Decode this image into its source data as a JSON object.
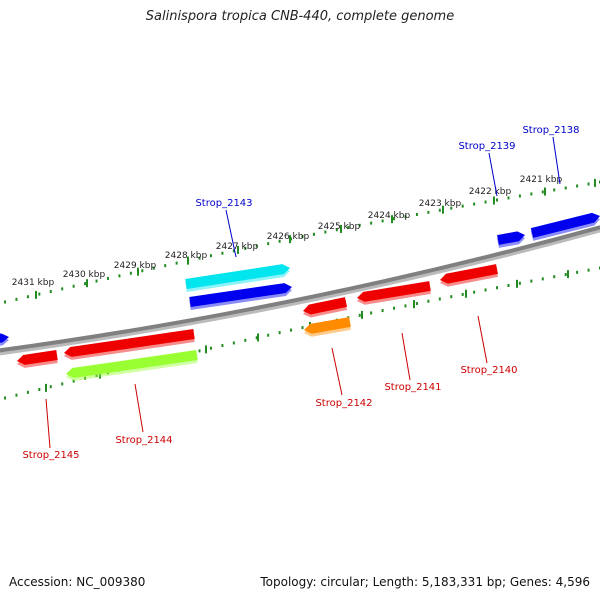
{
  "title": "Salinispora tropica CNB-440, complete genome",
  "footer": {
    "accession": "Accession: NC_009380",
    "summary": "Topology: circular; Length: 5,183,331 bp; Genes: 4,596"
  },
  "ruler": {
    "labels": [
      "2421 kbp",
      "2422 kbp",
      "2423 kbp",
      "2424 kbp",
      "2425 kbp",
      "2426 kbp",
      "2427 kbp",
      "2428 kbp",
      "2429 kbp",
      "2430 kbp",
      "2431 kbp"
    ]
  },
  "genes": [
    {
      "label": "Strop_2138",
      "strand": "forward",
      "color": "#0000ee"
    },
    {
      "label": "Strop_2139",
      "strand": "forward",
      "color": "#0000ee"
    },
    {
      "label": "Strop_2140",
      "strand": "reverse",
      "color": "#ee0000"
    },
    {
      "label": "Strop_2141",
      "strand": "reverse",
      "color": "#ee0000"
    },
    {
      "label": "Strop_2142",
      "strand": "reverse",
      "color": "#ee0000"
    },
    {
      "label": "Strop_2143",
      "strand": "forward",
      "color": "#0000ee"
    },
    {
      "label": "Strop_2144",
      "strand": "reverse",
      "color": "#ee0000"
    },
    {
      "label": "Strop_2145",
      "strand": "reverse",
      "color": "#ee0000"
    }
  ],
  "extra_features": [
    {
      "color": "#00e5ee",
      "strand": "forward"
    },
    {
      "color": "#ff8c00",
      "strand": "reverse"
    },
    {
      "color": "#99ff33",
      "strand": "reverse"
    }
  ],
  "colors": {
    "backbone": "#808080",
    "ticks": "#228b22",
    "forward_label": "#0000cc",
    "reverse_label": "#cc0000"
  }
}
